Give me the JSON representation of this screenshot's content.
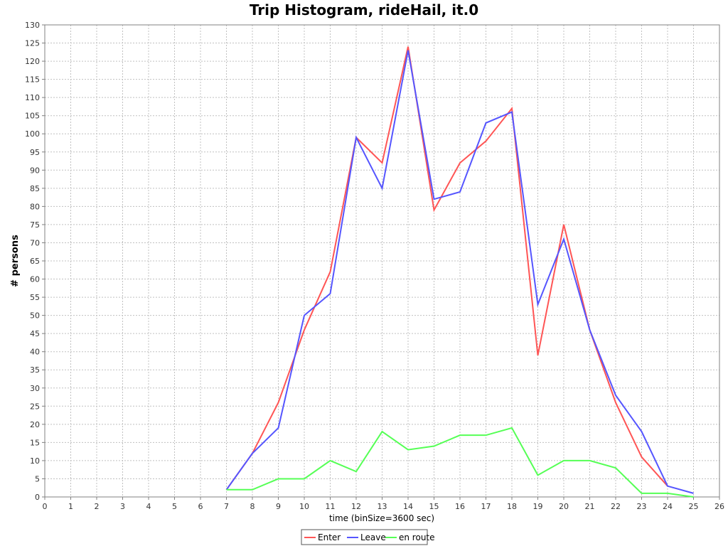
{
  "chart_data": {
    "type": "line",
    "title": "Trip Histogram, rideHail, it.0",
    "xlabel": "time (binSize=3600 sec)",
    "ylabel": "# persons",
    "xlim": [
      0,
      26
    ],
    "ylim": [
      0,
      130
    ],
    "x_ticks": [
      0,
      1,
      2,
      3,
      4,
      5,
      6,
      7,
      8,
      9,
      10,
      11,
      12,
      13,
      14,
      15,
      16,
      17,
      18,
      19,
      20,
      21,
      22,
      23,
      24,
      25,
      26
    ],
    "y_ticks": [
      0,
      5,
      10,
      15,
      20,
      25,
      30,
      35,
      40,
      45,
      50,
      55,
      60,
      65,
      70,
      75,
      80,
      85,
      90,
      95,
      100,
      105,
      110,
      115,
      120,
      125,
      130
    ],
    "grid": true,
    "legend_position": "bottom",
    "series": [
      {
        "name": "Enter",
        "color": "#ff5555",
        "x": [
          7,
          8,
          9,
          10,
          11,
          12,
          13,
          14,
          15,
          16,
          17,
          18,
          19,
          20,
          21,
          22,
          23,
          24
        ],
        "values": [
          2,
          12,
          26,
          46,
          62,
          99,
          92,
          124,
          79,
          92,
          98,
          107,
          39,
          75,
          46,
          26,
          11,
          3
        ]
      },
      {
        "name": "Leave",
        "color": "#5555ff",
        "x": [
          7,
          8,
          9,
          10,
          11,
          12,
          13,
          14,
          15,
          16,
          17,
          18,
          19,
          20,
          21,
          22,
          23,
          24,
          25
        ],
        "values": [
          2,
          12,
          19,
          50,
          56,
          99,
          85,
          123,
          82,
          84,
          103,
          106,
          53,
          71,
          46,
          28,
          18,
          3,
          1
        ]
      },
      {
        "name": "en route",
        "color": "#55ff55",
        "x": [
          7,
          8,
          9,
          10,
          11,
          12,
          13,
          14,
          15,
          16,
          17,
          18,
          19,
          20,
          21,
          22,
          23,
          24,
          25
        ],
        "values": [
          2,
          2,
          5,
          5,
          10,
          7,
          18,
          13,
          14,
          17,
          17,
          19,
          6,
          10,
          10,
          8,
          1,
          1,
          0
        ]
      }
    ]
  }
}
